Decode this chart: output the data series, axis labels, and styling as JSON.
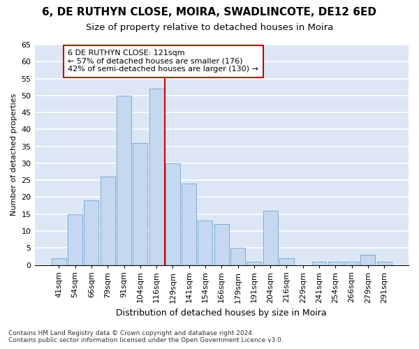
{
  "title1": "6, DE RUTHYN CLOSE, MOIRA, SWADLINCOTE, DE12 6ED",
  "title2": "Size of property relative to detached houses in Moira",
  "xlabel": "Distribution of detached houses by size in Moira",
  "ylabel": "Number of detached properties",
  "categories": [
    "41sqm",
    "54sqm",
    "66sqm",
    "79sqm",
    "91sqm",
    "104sqm",
    "116sqm",
    "129sqm",
    "141sqm",
    "154sqm",
    "166sqm",
    "179sqm",
    "191sqm",
    "204sqm",
    "216sqm",
    "229sqm",
    "241sqm",
    "254sqm",
    "266sqm",
    "279sqm",
    "291sqm"
  ],
  "values": [
    2,
    15,
    19,
    26,
    50,
    36,
    52,
    30,
    24,
    13,
    12,
    5,
    1,
    16,
    2,
    0,
    1,
    1,
    1,
    3,
    1
  ],
  "bar_color": "#c5d8f0",
  "bar_edge_color": "#7aadd4",
  "vline_color": "#cc0000",
  "annotation_text": "6 DE RUTHYN CLOSE: 121sqm\n← 57% of detached houses are smaller (176)\n42% of semi-detached houses are larger (130) →",
  "annotation_box_color": "white",
  "annotation_box_edge": "#cc0000",
  "bg_color": "#dce6f5",
  "grid_color": "white",
  "footer": "Contains HM Land Registry data © Crown copyright and database right 2024.\nContains public sector information licensed under the Open Government Licence v3.0.",
  "ylim": [
    0,
    65
  ],
  "yticks": [
    0,
    5,
    10,
    15,
    20,
    25,
    30,
    35,
    40,
    45,
    50,
    55,
    60,
    65
  ],
  "title1_fontsize": 11,
  "title2_fontsize": 9.5,
  "xlabel_fontsize": 9,
  "ylabel_fontsize": 8,
  "tick_fontsize": 8,
  "annot_fontsize": 8
}
